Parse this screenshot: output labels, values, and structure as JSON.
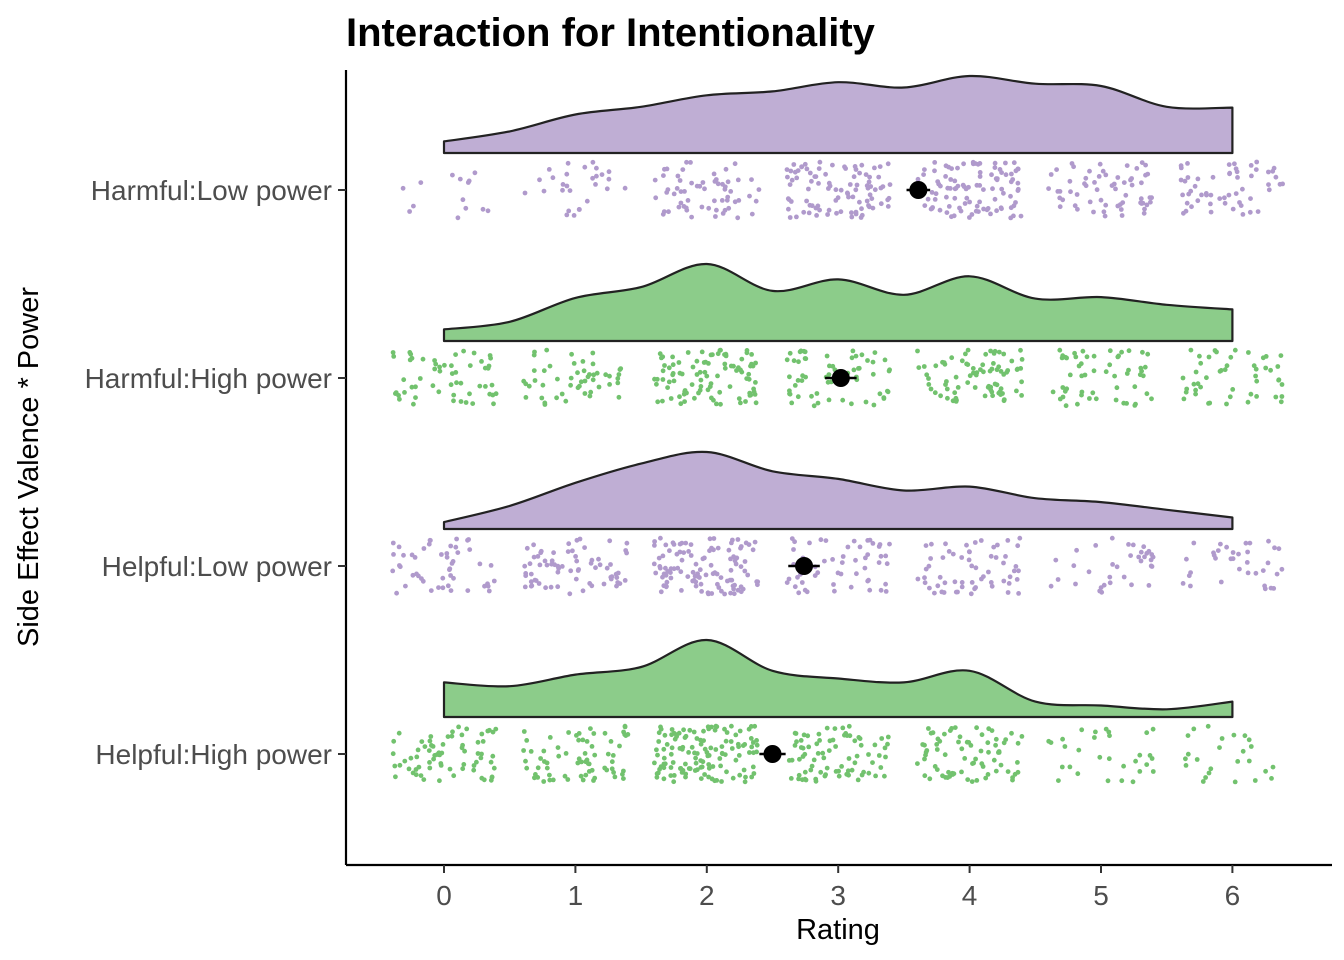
{
  "chart_data": {
    "type": "raincloud",
    "title": "Interaction for Intentionality",
    "xlabel": "Rating",
    "ylabel": "Side Effect Valence * Power",
    "xlim": [
      -0.74,
      6.74
    ],
    "xticks": [
      0,
      1,
      2,
      3,
      4,
      5,
      6
    ],
    "grid": false,
    "legend": "none",
    "groups": [
      {
        "label": "Harmful:Low power",
        "color": "#bfaed4",
        "point_color": "#b09acc",
        "mean": 3.61,
        "ci": [
          3.52,
          3.7
        ],
        "density_x": [
          0,
          0.5,
          1,
          1.5,
          2,
          2.5,
          3,
          3.5,
          4,
          4.5,
          5,
          5.5,
          6
        ],
        "density": [
          0.15,
          0.28,
          0.5,
          0.6,
          0.75,
          0.8,
          0.92,
          0.85,
          1.0,
          0.9,
          0.87,
          0.6,
          0.59
        ],
        "counts": [
          14,
          28,
          62,
          95,
          100,
          62,
          55
        ]
      },
      {
        "label": "Harmful:High power",
        "color": "#8ccc8a",
        "point_color": "#72c26e",
        "mean": 3.02,
        "ci": [
          2.9,
          3.14
        ],
        "density_x": [
          0,
          0.5,
          1,
          1.5,
          2,
          2.5,
          3,
          3.5,
          4,
          4.5,
          5,
          5.5,
          6
        ],
        "density": [
          0.15,
          0.25,
          0.56,
          0.7,
          1.0,
          0.65,
          0.8,
          0.6,
          0.84,
          0.55,
          0.57,
          0.47,
          0.41
        ],
        "counts": [
          55,
          50,
          95,
          60,
          80,
          55,
          48
        ]
      },
      {
        "label": "Helpful:Low power",
        "color": "#bfaed4",
        "point_color": "#b09acc",
        "mean": 2.74,
        "ci": [
          2.62,
          2.86
        ],
        "density_x": [
          0,
          0.5,
          1,
          1.5,
          2,
          2.5,
          3,
          3.5,
          4,
          4.5,
          5,
          5.5,
          6
        ],
        "density": [
          0.09,
          0.3,
          0.6,
          0.85,
          1.0,
          0.75,
          0.65,
          0.5,
          0.55,
          0.4,
          0.35,
          0.25,
          0.15
        ],
        "counts": [
          50,
          70,
          110,
          55,
          60,
          35,
          35
        ]
      },
      {
        "label": "Helpful:High power",
        "color": "#8ccc8a",
        "point_color": "#72c26e",
        "mean": 2.5,
        "ci": [
          2.4,
          2.6
        ],
        "density_x": [
          0,
          0.5,
          1,
          1.5,
          2,
          2.5,
          3,
          3.5,
          4,
          4.5,
          5,
          5.5,
          6
        ],
        "density": [
          0.45,
          0.4,
          0.55,
          0.65,
          1.0,
          0.6,
          0.5,
          0.45,
          0.6,
          0.2,
          0.15,
          0.1,
          0.2
        ],
        "counts": [
          70,
          70,
          130,
          80,
          75,
          30,
          25
        ]
      }
    ]
  }
}
